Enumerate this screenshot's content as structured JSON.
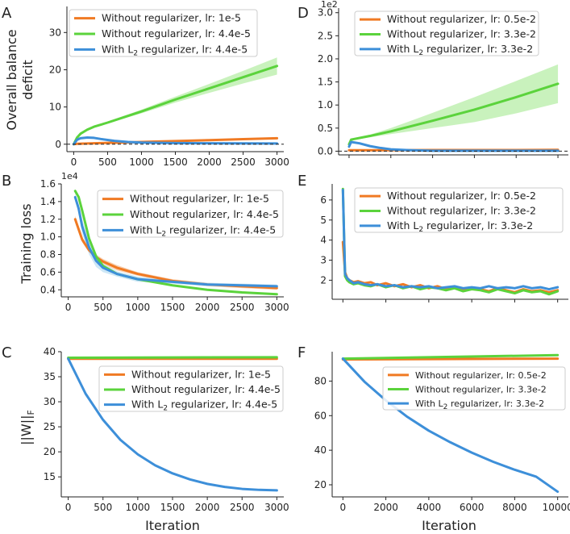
{
  "colors": {
    "orange": "#f07a23",
    "green": "#5bd33c",
    "blue": "#3d8fd9",
    "green_band": "#bff0b2",
    "blue_band": "#c4e3f5"
  },
  "shared": {
    "xlabel": "Iteration",
    "ylabel_top": "Overall balance",
    "ylabel_bottom": "deficit",
    "ylabel_mid": "Training loss",
    "ylabel_norm_main": "||W||",
    "ylabel_norm_sub": "F",
    "subscript_2": "2"
  },
  "chart_data": [
    {
      "panel": "A",
      "type": "line",
      "title": "",
      "xlabel": "",
      "ylabel": "Overall balance deficit",
      "xlim": [
        -100,
        3100
      ],
      "ylim": [
        -2,
        37
      ],
      "xticks": [
        0,
        500,
        1000,
        1500,
        2000,
        2500,
        3000
      ],
      "xtick_labels": [
        "0",
        "500",
        "1000",
        "1500",
        "2000",
        "2500",
        "3000"
      ],
      "yticks": [
        0,
        10,
        20,
        30
      ],
      "ytick_labels": [
        "0",
        "10",
        "20",
        "30"
      ],
      "exponent": "",
      "zero_dashed_line": true,
      "legend_position": "upper-left",
      "legend_entries": [
        {
          "text": "Without regularizer, lr: 1e-5",
          "color": "orange"
        },
        {
          "text": "Without regularizer, lr: 4.4e-5",
          "color": "green"
        },
        {
          "pre": "With L",
          "sub": "2",
          "post": " regularizer, lr: 4.4e-5",
          "color": "blue"
        }
      ],
      "series": [
        {
          "name": "Without regularizer, lr: 1e-5",
          "color": "orange",
          "x": [
            0,
            50,
            100,
            200,
            300,
            500,
            700,
            900,
            1200,
            1500,
            2000,
            2500,
            3000
          ],
          "y": [
            0,
            0.1,
            0.15,
            0.2,
            0.25,
            0.35,
            0.45,
            0.55,
            0.7,
            0.85,
            1.1,
            1.35,
            1.6
          ]
        },
        {
          "name": "Without regularizer, lr: 4.4e-5",
          "color": "green",
          "x": [
            0,
            50,
            100,
            200,
            300,
            500,
            800,
            1000,
            1500,
            2000,
            2500,
            3000
          ],
          "y": [
            0,
            1.8,
            2.8,
            3.9,
            4.7,
            5.8,
            7.6,
            8.8,
            12,
            15,
            18,
            21
          ],
          "band_upper": [
            0,
            2,
            3,
            4.1,
            4.9,
            6.1,
            8,
            9.3,
            12.8,
            16.2,
            19.7,
            23.3
          ],
          "band_lower": [
            0,
            1.6,
            2.6,
            3.7,
            4.5,
            5.5,
            7.2,
            8.3,
            11.2,
            13.8,
            16.3,
            18.7
          ]
        },
        {
          "name": "With L2 regularizer, lr: 4.4e-5",
          "color": "blue",
          "x": [
            0,
            50,
            100,
            200,
            300,
            400,
            600,
            800,
            1000,
            1500,
            2000,
            2500,
            3000
          ],
          "y": [
            0,
            1.2,
            1.6,
            1.8,
            1.7,
            1.4,
            0.9,
            0.6,
            0.45,
            0.3,
            0.25,
            0.22,
            0.2
          ]
        }
      ]
    },
    {
      "panel": "D",
      "type": "line",
      "title": "",
      "xlabel": "",
      "ylabel": "",
      "xlim": [
        -500,
        10500
      ],
      "ylim": [
        -0.08,
        3.1
      ],
      "xticks": [
        0,
        2000,
        4000,
        6000,
        8000,
        10000
      ],
      "xtick_labels": [],
      "yticks": [
        0,
        0.5,
        1.0,
        1.5,
        2.0,
        2.5,
        3.0
      ],
      "ytick_labels": [
        "0.0",
        "0.5",
        "1.0",
        "1.5",
        "2.0",
        "2.5",
        "3.0"
      ],
      "exponent": "1e2",
      "zero_dashed_line": true,
      "legend_position": "upper-center",
      "legend_entries": [
        {
          "text": "Without regularizer, lr: 0.5e-2",
          "color": "orange"
        },
        {
          "text": "Without regularizer, lr: 3.3e-2",
          "color": "green"
        },
        {
          "pre": "With L",
          "sub": "2",
          "post": " regularizer, lr: 3.3e-2",
          "color": "blue"
        }
      ],
      "series": [
        {
          "name": "Without regularizer, lr: 0.5e-2",
          "color": "orange",
          "x": [
            0,
            1000,
            2000,
            4000,
            6000,
            8000,
            10000
          ],
          "y": [
            0.02,
            0.02,
            0.02,
            0.025,
            0.025,
            0.025,
            0.03
          ]
        },
        {
          "name": "Without regularizer, lr: 3.3e-2",
          "color": "green",
          "x": [
            0,
            100,
            200,
            1000,
            2000,
            4000,
            6000,
            8000,
            10000
          ],
          "y": [
            0.15,
            0.25,
            0.26,
            0.33,
            0.43,
            0.66,
            0.9,
            1.17,
            1.46
          ],
          "band_upper": [
            0.16,
            0.27,
            0.28,
            0.36,
            0.5,
            0.83,
            1.17,
            1.52,
            1.88
          ],
          "band_lower": [
            0.14,
            0.23,
            0.24,
            0.3,
            0.37,
            0.5,
            0.63,
            0.82,
            1.04
          ]
        },
        {
          "name": "With L2 regularizer, lr: 3.3e-2",
          "color": "blue",
          "x": [
            0,
            100,
            500,
            1000,
            1500,
            2000,
            3000,
            4000,
            6000,
            8000,
            10000
          ],
          "y": [
            0.1,
            0.2,
            0.17,
            0.11,
            0.07,
            0.04,
            0.02,
            0.01,
            0.01,
            0.01,
            0.01
          ]
        }
      ]
    },
    {
      "panel": "B",
      "type": "line",
      "title": "",
      "xlabel": "",
      "ylabel": "Training loss",
      "xlim": [
        -100,
        3100
      ],
      "ylim": [
        0.32,
        1.6
      ],
      "xticks": [
        0,
        500,
        1000,
        1500,
        2000,
        2500,
        3000
      ],
      "xtick_labels": [
        "0",
        "500",
        "1000",
        "1500",
        "2000",
        "2500",
        "3000"
      ],
      "yticks": [
        0.4,
        0.6,
        0.8,
        1.0,
        1.2,
        1.4,
        1.6
      ],
      "ytick_labels": [
        "0.4",
        "0.6",
        "0.8",
        "1.0",
        "1.2",
        "1.4",
        "1.6"
      ],
      "exponent": "1e4",
      "zero_dashed_line": false,
      "legend_position": "upper-right",
      "legend_entries": [
        {
          "text": "Without regularizer, lr: 1e-5",
          "color": "orange"
        },
        {
          "text": "Without regularizer, lr: 4.4e-5",
          "color": "green"
        },
        {
          "pre": "With L",
          "sub": "2",
          "post": " regularizer, lr: 4.4e-5",
          "color": "blue"
        }
      ],
      "series": [
        {
          "name": "Without regularizer, lr: 1e-5",
          "color": "orange",
          "x": [
            100,
            200,
            300,
            400,
            500,
            700,
            1000,
            1500,
            2000,
            2500,
            3000
          ],
          "y": [
            1.2,
            0.97,
            0.85,
            0.77,
            0.72,
            0.65,
            0.58,
            0.5,
            0.46,
            0.44,
            0.42
          ],
          "band_upper": [
            1.24,
            1.0,
            0.88,
            0.8,
            0.75,
            0.68,
            0.6,
            0.52,
            0.48,
            0.46,
            0.44
          ],
          "band_lower": [
            1.16,
            0.94,
            0.82,
            0.74,
            0.69,
            0.62,
            0.56,
            0.48,
            0.44,
            0.42,
            0.4
          ]
        },
        {
          "name": "Without regularizer, lr: 4.4e-5",
          "color": "green",
          "x": [
            100,
            150,
            200,
            300,
            400,
            500,
            700,
            1000,
            1500,
            2000,
            2500,
            3000
          ],
          "y": [
            1.52,
            1.45,
            1.3,
            0.98,
            0.78,
            0.67,
            0.58,
            0.52,
            0.45,
            0.4,
            0.37,
            0.35
          ]
        },
        {
          "name": "With L2 regularizer, lr: 4.4e-5",
          "color": "blue",
          "x": [
            100,
            150,
            200,
            300,
            400,
            500,
            700,
            1000,
            1500,
            2000,
            2500,
            3000
          ],
          "y": [
            1.45,
            1.32,
            1.12,
            0.88,
            0.73,
            0.65,
            0.58,
            0.52,
            0.49,
            0.46,
            0.45,
            0.44
          ],
          "band_upper": [
            1.49,
            1.37,
            1.2,
            0.96,
            0.8,
            0.7,
            0.61,
            0.55,
            0.51,
            0.48,
            0.47,
            0.46
          ],
          "band_lower": [
            1.41,
            1.27,
            1.04,
            0.8,
            0.66,
            0.6,
            0.55,
            0.49,
            0.47,
            0.44,
            0.43,
            0.42
          ]
        }
      ]
    },
    {
      "panel": "E",
      "type": "line",
      "title": "",
      "xlabel": "",
      "ylabel": "",
      "xlim": [
        -500,
        10500
      ],
      "ylim": [
        1.05,
        6.8
      ],
      "xticks": [
        0,
        2000,
        4000,
        6000,
        8000,
        10000
      ],
      "xtick_labels": [],
      "yticks": [
        2,
        3,
        4,
        5,
        6
      ],
      "ytick_labels": [
        "2",
        "3",
        "4",
        "5",
        "6"
      ],
      "exponent": "",
      "zero_dashed_line": false,
      "legend_position": "upper-right",
      "legend_entries": [
        {
          "text": "Without regularizer, lr: 0.5e-2",
          "color": "orange"
        },
        {
          "text": "Without regularizer, lr: 3.3e-2",
          "color": "green"
        },
        {
          "pre": "With L",
          "sub": "2",
          "post": " regularizer, lr: 3.3e-2",
          "color": "blue"
        }
      ],
      "series": [
        {
          "name": "Without regularizer, lr: 0.5e-2",
          "color": "orange",
          "x": [
            0,
            100,
            200,
            300,
            500,
            700,
            1000,
            1300,
            1600,
            2000,
            2400,
            2800,
            3200,
            3600,
            4000,
            4400,
            4800,
            5200,
            5600,
            6000,
            6400,
            6800,
            7200,
            7600,
            8000,
            8400,
            8800,
            9200,
            9600,
            10000
          ],
          "y": [
            3.9,
            2.4,
            2.1,
            2.0,
            1.9,
            1.95,
            1.85,
            1.9,
            1.75,
            1.85,
            1.7,
            1.8,
            1.65,
            1.75,
            1.6,
            1.7,
            1.55,
            1.65,
            1.5,
            1.6,
            1.55,
            1.45,
            1.6,
            1.5,
            1.4,
            1.55,
            1.45,
            1.5,
            1.4,
            1.5
          ]
        },
        {
          "name": "Without regularizer, lr: 3.3e-2",
          "color": "green",
          "x": [
            0,
            100,
            200,
            300,
            500,
            700,
            1000,
            1300,
            1600,
            2000,
            2400,
            2800,
            3200,
            3600,
            4000,
            4400,
            4800,
            5200,
            5600,
            6000,
            6400,
            6800,
            7200,
            7600,
            8000,
            8400,
            8800,
            9200,
            9600,
            10000
          ],
          "y": [
            6.55,
            2.2,
            2.0,
            1.9,
            1.8,
            1.85,
            1.75,
            1.7,
            1.8,
            1.65,
            1.75,
            1.6,
            1.7,
            1.55,
            1.65,
            1.6,
            1.5,
            1.6,
            1.45,
            1.55,
            1.5,
            1.4,
            1.55,
            1.45,
            1.35,
            1.5,
            1.4,
            1.45,
            1.3,
            1.45
          ]
        },
        {
          "name": "With L2 regularizer, lr: 3.3e-2",
          "color": "blue",
          "x": [
            0,
            100,
            200,
            300,
            500,
            700,
            1000,
            1300,
            1600,
            2000,
            2400,
            2800,
            3200,
            3600,
            4000,
            4400,
            4800,
            5200,
            5600,
            6000,
            6400,
            6800,
            7200,
            7600,
            8000,
            8400,
            8800,
            9200,
            9600,
            10000
          ],
          "y": [
            6.5,
            2.3,
            2.1,
            2.0,
            1.85,
            1.9,
            1.8,
            1.75,
            1.8,
            1.7,
            1.75,
            1.65,
            1.7,
            1.65,
            1.7,
            1.6,
            1.65,
            1.7,
            1.6,
            1.65,
            1.6,
            1.7,
            1.6,
            1.65,
            1.6,
            1.7,
            1.6,
            1.65,
            1.55,
            1.65
          ]
        }
      ]
    },
    {
      "panel": "C",
      "type": "line",
      "title": "",
      "xlabel": "Iteration",
      "ylabel": "||W||F",
      "xlim": [
        -100,
        3100
      ],
      "ylim": [
        11,
        40
      ],
      "xticks": [
        0,
        500,
        1000,
        1500,
        2000,
        2500,
        3000
      ],
      "xtick_labels": [
        "0",
        "500",
        "1000",
        "1500",
        "2000",
        "2500",
        "3000"
      ],
      "yticks": [
        15,
        20,
        25,
        30,
        35,
        40
      ],
      "ytick_labels": [
        "15",
        "20",
        "25",
        "30",
        "35",
        "40"
      ],
      "exponent": "",
      "zero_dashed_line": false,
      "legend_position": "upper-right",
      "legend_entries": [
        {
          "text": "Without regularizer, lr: 1e-5",
          "color": "orange"
        },
        {
          "text": "Without regularizer, lr: 4.4e-5",
          "color": "green"
        },
        {
          "pre": "With L",
          "sub": "2",
          "post": " regularizer, lr: 4.4e-5",
          "color": "blue"
        }
      ],
      "series": [
        {
          "name": "Without regularizer, lr: 1e-5",
          "color": "orange",
          "x": [
            0,
            3000
          ],
          "y": [
            38.6,
            38.6
          ]
        },
        {
          "name": "Without regularizer, lr: 4.4e-5",
          "color": "green",
          "x": [
            0,
            3000
          ],
          "y": [
            38.8,
            38.9
          ]
        },
        {
          "name": "With L2 regularizer, lr: 4.4e-5",
          "color": "blue",
          "x": [
            0,
            250,
            500,
            750,
            1000,
            1250,
            1500,
            1750,
            2000,
            2250,
            2500,
            2750,
            3000
          ],
          "y": [
            38.6,
            31.6,
            26.4,
            22.4,
            19.5,
            17.3,
            15.7,
            14.5,
            13.6,
            13.0,
            12.6,
            12.4,
            12.3
          ]
        }
      ]
    },
    {
      "panel": "F",
      "type": "line",
      "title": "",
      "xlabel": "Iteration",
      "ylabel": "",
      "xlim": [
        -500,
        10500
      ],
      "ylim": [
        13,
        97
      ],
      "xticks": [
        0,
        2000,
        4000,
        6000,
        8000,
        10000
      ],
      "xtick_labels": [
        "0",
        "2000",
        "4000",
        "6000",
        "8000",
        "10000"
      ],
      "yticks": [
        20,
        40,
        60,
        80
      ],
      "ytick_labels": [
        "20",
        "40",
        "60",
        "80"
      ],
      "exponent": "",
      "zero_dashed_line": false,
      "legend_position": "upper-right",
      "small_legend": true,
      "legend_entries": [
        {
          "text": "Without regularizer, lr: 0.5e-2",
          "color": "orange"
        },
        {
          "text": "Without regularizer, lr: 3.3e-2",
          "color": "green"
        },
        {
          "pre": "With L",
          "sub": "2",
          "post": " regularizer, lr: 3.3e-2",
          "color": "blue"
        }
      ],
      "series": [
        {
          "name": "Without regularizer, lr: 0.5e-2",
          "color": "orange",
          "x": [
            0,
            10000
          ],
          "y": [
            92.5,
            93
          ]
        },
        {
          "name": "Without regularizer, lr: 3.3e-2",
          "color": "green",
          "x": [
            0,
            10000
          ],
          "y": [
            93,
            95
          ]
        },
        {
          "name": "With L2 regularizer, lr: 3.3e-2",
          "color": "blue",
          "x": [
            0,
            1000,
            2000,
            3000,
            4000,
            5000,
            6000,
            7000,
            8000,
            9000,
            10000
          ],
          "y": [
            93,
            79.7,
            68.8,
            59.3,
            51.3,
            44.6,
            38.6,
            33.3,
            28.7,
            24.7,
            16
          ]
        }
      ]
    }
  ]
}
